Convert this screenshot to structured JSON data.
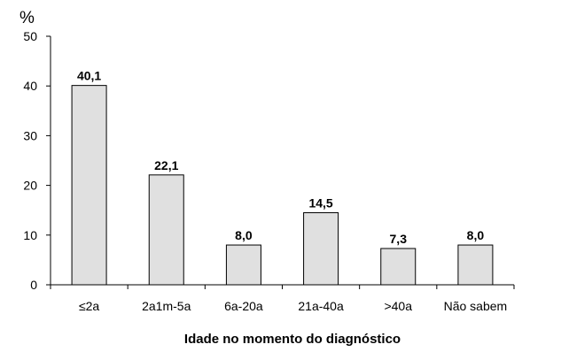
{
  "chart_data": {
    "type": "bar",
    "ylabel": "%",
    "xlabel": "Idade no momento do diagnóstico",
    "categories": [
      "<2a",
      "2a1m-5a",
      "6a-20a",
      "21a-40a",
      ">40a",
      "Não sabem"
    ],
    "categories_display": [
      "≤2a",
      "2a1m-5a",
      "6a-20a",
      "21a-40a",
      ">40a",
      "Não sabem"
    ],
    "values": [
      40.1,
      22.1,
      8.0,
      14.5,
      7.3,
      8.0
    ],
    "value_labels": [
      "40,1",
      "22,1",
      "8,0",
      "14,5",
      "7,3",
      "8,0"
    ],
    "yticks": [
      "0",
      "10",
      "20",
      "30",
      "40",
      "50"
    ],
    "ylim": [
      0,
      50
    ],
    "grid": false,
    "bar_color": "#e0e0e0",
    "bar_edge_color": "#000000"
  }
}
